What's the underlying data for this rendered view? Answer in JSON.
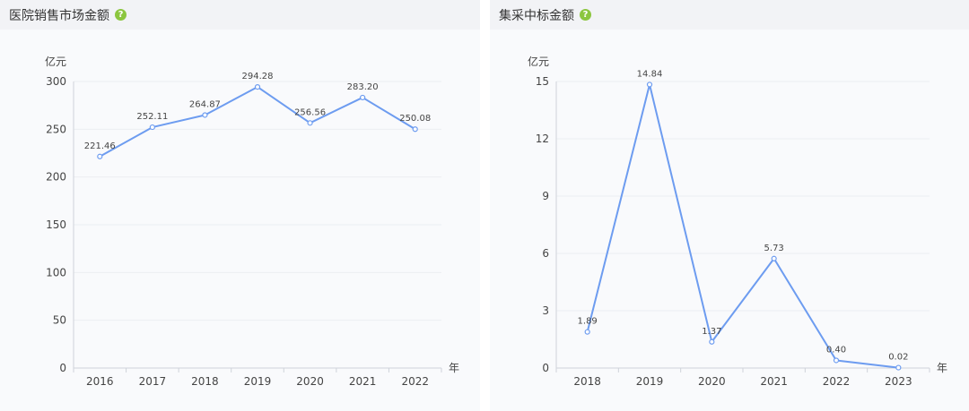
{
  "colors": {
    "line": "#6d9cf0",
    "grid": "#eceef2",
    "axis": "#cfd3da"
  },
  "help_icon": "question-circle-icon",
  "chart_data": [
    {
      "type": "line",
      "title": "医院销售市场金额",
      "ylabel": "亿元",
      "xlabel": "年",
      "categories": [
        "2016",
        "2017",
        "2018",
        "2019",
        "2020",
        "2021",
        "2022"
      ],
      "values": [
        221.46,
        252.11,
        264.87,
        294.28,
        256.56,
        283.2,
        250.08
      ],
      "value_labels": [
        "221.46",
        "252.11",
        "264.87",
        "294.28",
        "256.56",
        "283.20",
        "250.08"
      ],
      "ylim": [
        0,
        300
      ],
      "yticks": [
        "0",
        "50",
        "100",
        "150",
        "200",
        "250",
        "300"
      ],
      "grid": true
    },
    {
      "type": "line",
      "title": "集采中标金额",
      "ylabel": "亿元",
      "xlabel": "年",
      "categories": [
        "2018",
        "2019",
        "2020",
        "2021",
        "2022",
        "2023"
      ],
      "values": [
        1.89,
        14.84,
        1.37,
        5.73,
        0.4,
        0.02
      ],
      "value_labels": [
        "1.89",
        "14.84",
        "1.37",
        "5.73",
        "0.40",
        "0.02"
      ],
      "ylim": [
        0,
        15
      ],
      "yticks": [
        "0",
        "3",
        "6",
        "9",
        "12",
        "15"
      ],
      "grid": true
    }
  ]
}
